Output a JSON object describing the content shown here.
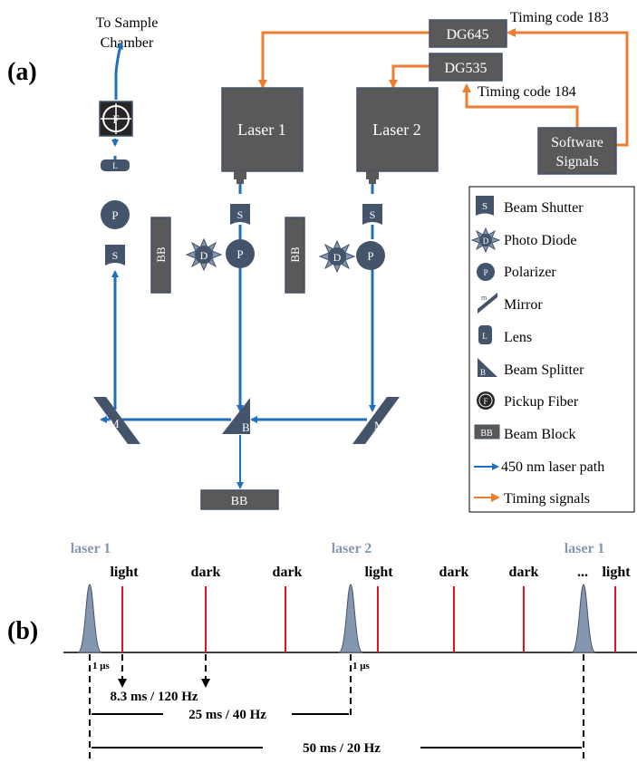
{
  "panel_a": {
    "label": "(a)",
    "sample_chamber_line1": "To Sample",
    "sample_chamber_line2": "Chamber",
    "dg645": "DG645",
    "dg535": "DG535",
    "timing_code_183": "Timing code 183",
    "timing_code_184": "Timing code 184",
    "laser1": "Laser 1",
    "laser2": "Laser 2",
    "software_line1": "Software",
    "software_line2": "Signals",
    "fiber_letter": "F",
    "lens_letter": "L",
    "polarizer_letter": "P",
    "shutter_letter": "S",
    "diode_letter": "D",
    "mirror_letter": "M",
    "splitter_letter": "B",
    "beam_block": "BB"
  },
  "legend": {
    "items": [
      {
        "icon": "beam-shutter-icon",
        "letter": "S",
        "label": "Beam Shutter"
      },
      {
        "icon": "photo-diode-icon",
        "letter": "D",
        "label": "Photo Diode"
      },
      {
        "icon": "polarizer-icon",
        "letter": "P",
        "label": "Polarizer"
      },
      {
        "icon": "mirror-icon",
        "letter": "m",
        "label": "Mirror"
      },
      {
        "icon": "lens-icon",
        "letter": "L",
        "label": "Lens"
      },
      {
        "icon": "beam-splitter-icon",
        "letter": "B",
        "label": "Beam Splitter"
      },
      {
        "icon": "pickup-fiber-icon",
        "letter": "F",
        "label": "Pickup Fiber"
      },
      {
        "icon": "beam-block-icon",
        "letter": "BB",
        "label": "Beam Block"
      },
      {
        "icon": "blue-arrow-icon",
        "letter": "",
        "label": "450 nm laser path"
      },
      {
        "icon": "orange-arrow-icon",
        "letter": "",
        "label": "Timing signals"
      }
    ]
  },
  "panel_b": {
    "label": "(b)",
    "laser1_a": "laser 1",
    "laser2": "laser 2",
    "laser1_b": "laser 1",
    "light_1": "light",
    "dark_1": "dark",
    "dark_2": "dark",
    "light_2": "light",
    "dark_3": "dark",
    "dark_4": "dark",
    "ellipsis": "...",
    "light_3": "light",
    "us_1": "1 μs",
    "us_2": "1 μs",
    "interval_1": "8.3 ms / 120 Hz",
    "interval_2": "25 ms / 40 Hz",
    "interval_3": "50 ms / 20 Hz"
  },
  "colors": {
    "laser_path": "#1f6fbf",
    "timing": "#ed7d31",
    "component": "#595959",
    "pulse": "#8496b0",
    "sample_red": "#e0141e"
  }
}
